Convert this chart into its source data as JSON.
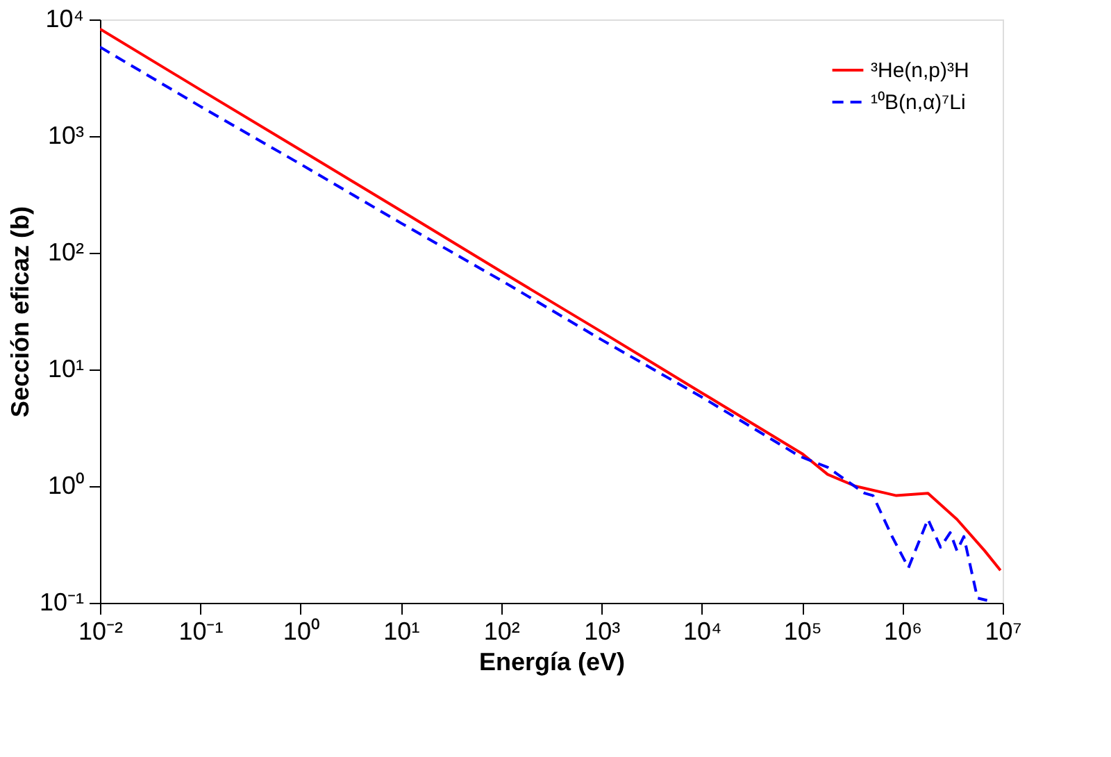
{
  "chart_data": {
    "type": "line",
    "xlabel": "Energía (eV)",
    "ylabel": "Sección eficaz (b)",
    "log": "xy",
    "grid": false,
    "legend": "top right",
    "marker": "none",
    "xlim": [
      0.01,
      10000000
    ],
    "ylim": [
      0.1,
      10000
    ],
    "xticks": [
      {
        "value": 0.01,
        "label": "10⁻²"
      },
      {
        "value": 0.1,
        "label": "10⁻¹"
      },
      {
        "value": 1,
        "label": "10⁰"
      },
      {
        "value": 10,
        "label": "10¹"
      },
      {
        "value": 100,
        "label": "10²"
      },
      {
        "value": 1000,
        "label": "10³"
      },
      {
        "value": 10000,
        "label": "10⁴"
      },
      {
        "value": 100000,
        "label": "10⁵"
      },
      {
        "value": 1000000,
        "label": "10⁶"
      },
      {
        "value": 10000000,
        "label": "10⁷"
      }
    ],
    "yticks": [
      {
        "value": 0.1,
        "label": "10⁻¹"
      },
      {
        "value": 1,
        "label": "10⁰"
      },
      {
        "value": 10,
        "label": "10¹"
      },
      {
        "value": 100,
        "label": "10²"
      },
      {
        "value": 1000,
        "label": "10³"
      },
      {
        "value": 10000,
        "label": "10⁴"
      }
    ],
    "series": [
      {
        "name": "³He(n,p)³H",
        "color": "#ff0000",
        "line_style": "solid",
        "x": [
          0.01,
          0.1,
          1,
          10,
          100,
          1000,
          10000,
          100000,
          180000,
          340000,
          870000,
          1800000,
          3500000,
          6600000,
          9500000
        ],
        "values": [
          8300,
          2500,
          760,
          230,
          69,
          21,
          6.3,
          1.9,
          1.26,
          1.0,
          0.83,
          0.87,
          0.52,
          0.28,
          0.19
        ]
      },
      {
        "name": "¹⁰B(n,α)⁷Li",
        "color": "#0000ff",
        "line_style": "dashed",
        "x": [
          0.01,
          0.1,
          1,
          10,
          100,
          1000,
          10000,
          95000,
          180000,
          420000,
          510000,
          790000,
          1150000,
          1800000,
          2400000,
          3000000,
          3500000,
          4100000,
          5600000,
          7000000
        ],
        "values": [
          5800,
          1800,
          575,
          180,
          58,
          18,
          5.8,
          1.8,
          1.45,
          0.87,
          0.83,
          0.37,
          0.2,
          0.52,
          0.3,
          0.4,
          0.28,
          0.37,
          0.11,
          0.105
        ]
      }
    ]
  }
}
